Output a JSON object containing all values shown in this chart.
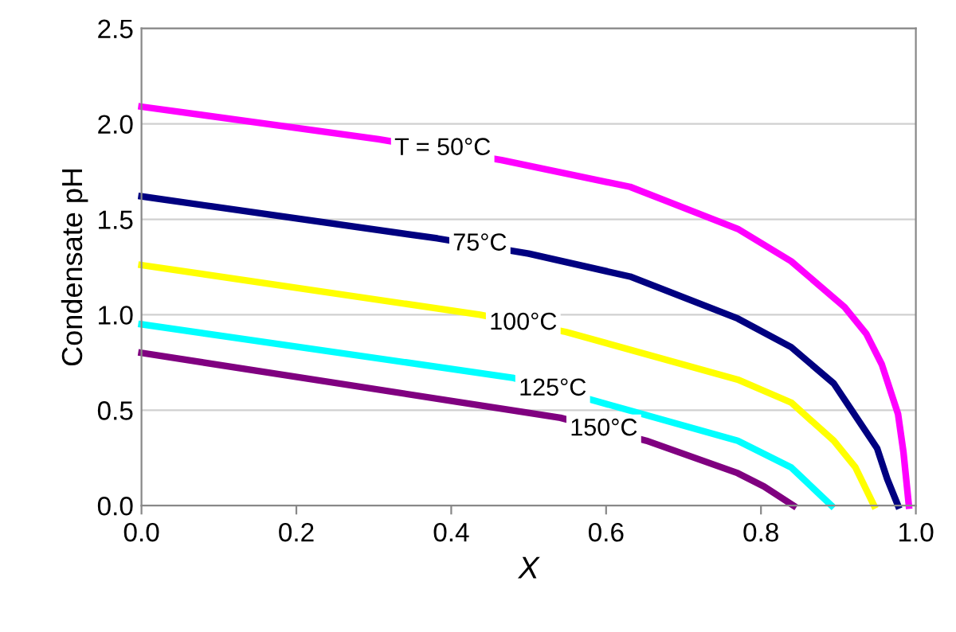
{
  "chart_data": {
    "type": "line",
    "xlabel": "X",
    "ylabel": "Condensate pH",
    "xlim": [
      0,
      1
    ],
    "ylim": [
      0,
      2.5
    ],
    "xticks": [
      {
        "value": 0,
        "label": "0.0"
      },
      0.2,
      0.4,
      0.6,
      0.8,
      {
        "value": 1,
        "label": "1.0"
      }
    ],
    "yticks": [
      {
        "value": 0,
        "label": "0.0"
      },
      0.5,
      {
        "value": 1,
        "label": "1.0"
      },
      1.5,
      {
        "value": 2,
        "label": "2.0"
      },
      2.5
    ],
    "grid": "y",
    "legend": false,
    "marker": "none",
    "line_style": "solid",
    "series": [
      {
        "color": "#ff00ff",
        "x": [
          0,
          0.306,
          0.465,
          0.631,
          0.77,
          0.839,
          0.908,
          0.936,
          0.956,
          0.977,
          0.984,
          0.991
        ],
        "values": [
          2.09,
          1.92,
          1.81,
          1.67,
          1.45,
          1.28,
          1.04,
          0.9,
          0.74,
          0.48,
          0.28,
          0
        ]
      },
      {
        "color": "#000080",
        "x": [
          0,
          0.382,
          0.5,
          0.631,
          0.77,
          0.839,
          0.894,
          0.95,
          0.963,
          0.977
        ],
        "values": [
          1.62,
          1.4,
          1.32,
          1.2,
          0.98,
          0.83,
          0.64,
          0.3,
          0.14,
          0
        ]
      },
      {
        "color": "#ffff00",
        "x": [
          0,
          0.437,
          0.548,
          0.77,
          0.839,
          0.894,
          0.922,
          0.946
        ],
        "values": [
          1.26,
          1.0,
          0.91,
          0.66,
          0.54,
          0.34,
          0.2,
          0
        ]
      },
      {
        "color": "#00ffff",
        "x": [
          0,
          0.479,
          0.77,
          0.839,
          0.891
        ],
        "values": [
          0.95,
          0.67,
          0.34,
          0.2,
          0
        ]
      },
      {
        "color": "#800080",
        "x": [
          0,
          0.541,
          0.652,
          0.77,
          0.804,
          0.842
        ],
        "values": [
          0.8,
          0.46,
          0.34,
          0.17,
          0.1,
          0
        ]
      }
    ],
    "annotations": [
      {
        "text": "T = 50°C",
        "x": 0.389,
        "y": 1.87
      },
      {
        "text": "75°C",
        "x": 0.437,
        "y": 1.37
      },
      {
        "text": "100°C",
        "x": 0.493,
        "y": 0.955
      },
      {
        "text": "125°C",
        "x": 0.531,
        "y": 0.61
      },
      {
        "text": "150°C",
        "x": 0.597,
        "y": 0.4
      }
    ]
  }
}
